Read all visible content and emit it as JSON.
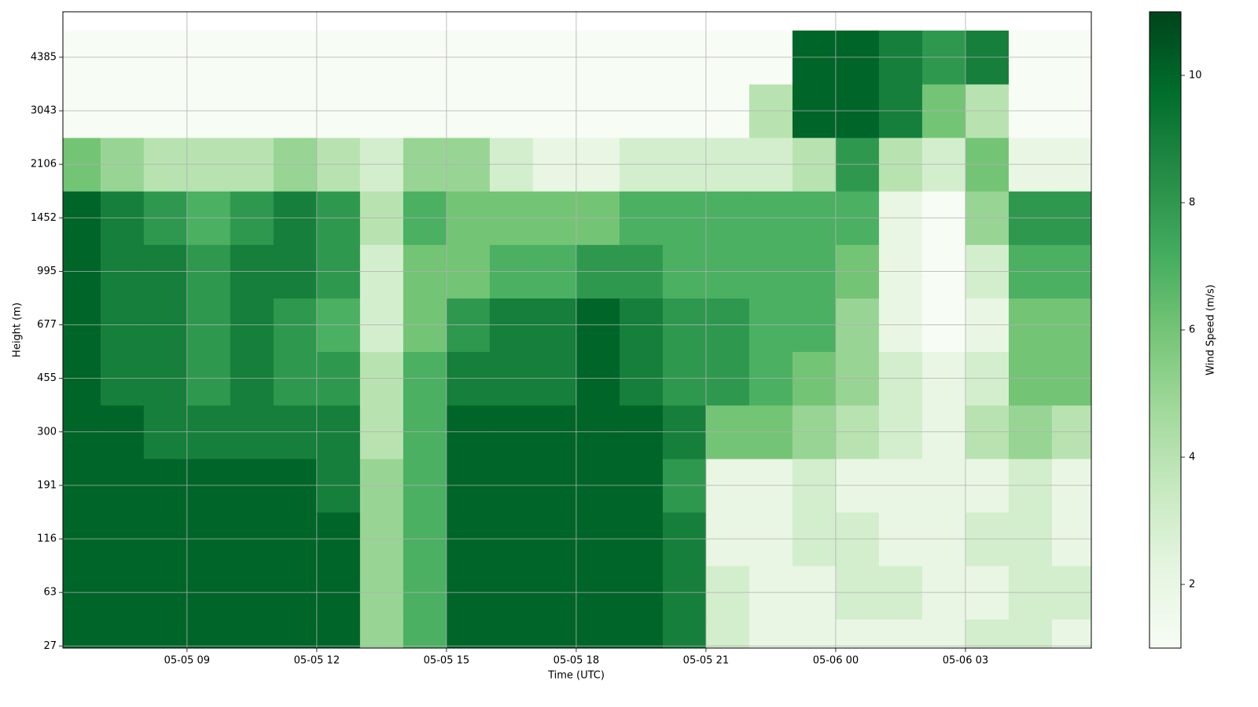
{
  "chart_data": {
    "type": "heatmap",
    "x_label": "Time (UTC)",
    "y_label": "Height (m)",
    "colorbar_label": "Wind Speed (m/s)",
    "x": [
      6.5,
      7.5,
      8.5,
      9.5,
      10.5,
      11.5,
      12.5,
      13.5,
      14.5,
      15.5,
      16.5,
      17.5,
      18.5,
      19.5,
      20.5,
      21.5,
      22.5,
      23.5,
      24.5,
      25.5,
      26.5,
      27.5,
      28.5,
      29.5
    ],
    "y": [
      0,
      1,
      2,
      3,
      4,
      5,
      6,
      7,
      8,
      9,
      10,
      11
    ],
    "values": [
      [
        10,
        10,
        10,
        10,
        10,
        10,
        10,
        5,
        7,
        10,
        10,
        10,
        10,
        10,
        9,
        3,
        2,
        2,
        2,
        2,
        2,
        3,
        3,
        2
      ],
      [
        10,
        10,
        10,
        10,
        10,
        10,
        10,
        5,
        7,
        10,
        10,
        10,
        10,
        10,
        9,
        3,
        2,
        2,
        3,
        3,
        2,
        2,
        3,
        3
      ],
      [
        10,
        10,
        10,
        10,
        10,
        10,
        10,
        5,
        7,
        10,
        10,
        10,
        10,
        10,
        9,
        2,
        2,
        3,
        3,
        2,
        2,
        3,
        3,
        2
      ],
      [
        10,
        10,
        10,
        10,
        10,
        10,
        9,
        5,
        7,
        10,
        10,
        10,
        10,
        10,
        8,
        2,
        2,
        3,
        2,
        2,
        2,
        2,
        3,
        2
      ],
      [
        10,
        10,
        9,
        9,
        9,
        9,
        9,
        4,
        7,
        10,
        10,
        10,
        10,
        10,
        9,
        6,
        6,
        5,
        4,
        3,
        2,
        4,
        5,
        4
      ],
      [
        10,
        9,
        9,
        8,
        9,
        8,
        8,
        4,
        7,
        9,
        9,
        9,
        10,
        9,
        8,
        8,
        7,
        6,
        5,
        3,
        2,
        3,
        6,
        6
      ],
      [
        10,
        9,
        9,
        8,
        9,
        8,
        7,
        3,
        6,
        8,
        9,
        9,
        10,
        9,
        8,
        8,
        7,
        7,
        5,
        2,
        1,
        2,
        6,
        6
      ],
      [
        10,
        9,
        9,
        8,
        9,
        9,
        8,
        3,
        6,
        6,
        7,
        7,
        8,
        8,
        7,
        7,
        7,
        7,
        6,
        2,
        1,
        3,
        7,
        7
      ],
      [
        10,
        9,
        8,
        7,
        8,
        9,
        8,
        4,
        7,
        6,
        6,
        6,
        6,
        7,
        7,
        7,
        7,
        7,
        7,
        2,
        1,
        5,
        8,
        8
      ],
      [
        6,
        5,
        4,
        4,
        4,
        5,
        4,
        3,
        5,
        5,
        3,
        2,
        2,
        3,
        3,
        3,
        3,
        4,
        8,
        4,
        3,
        6,
        2,
        2
      ],
      [
        1,
        1,
        1,
        1,
        1,
        1,
        1,
        1,
        1,
        1,
        1,
        1,
        1,
        1,
        1,
        1,
        4,
        10,
        10,
        9,
        6,
        4,
        1,
        1
      ],
      [
        1,
        1,
        1,
        1,
        1,
        1,
        1,
        1,
        1,
        1,
        1,
        1,
        1,
        1,
        1,
        1,
        1,
        10,
        10,
        9,
        8,
        9,
        1,
        1
      ]
    ],
    "xlim": [
      6.13,
      29.91
    ],
    "ylim": [
      -0.04,
      11.85
    ],
    "xticks": [
      {
        "value": 9,
        "label": "05-05 09"
      },
      {
        "value": 12,
        "label": "05-05 12"
      },
      {
        "value": 15,
        "label": "05-05 15"
      },
      {
        "value": 18,
        "label": "05-05 18"
      },
      {
        "value": 21,
        "label": "05-05 21"
      },
      {
        "value": 24,
        "label": "05-06 00"
      },
      {
        "value": 27,
        "label": "05-06 03"
      }
    ],
    "yticks": [
      {
        "value": 0,
        "label": "27"
      },
      {
        "value": 1,
        "label": "63"
      },
      {
        "value": 2,
        "label": "116"
      },
      {
        "value": 3,
        "label": "191"
      },
      {
        "value": 4,
        "label": "300"
      },
      {
        "value": 5,
        "label": "455"
      },
      {
        "value": 6,
        "label": "677"
      },
      {
        "value": 7,
        "label": "995"
      },
      {
        "value": 8,
        "label": "1452"
      },
      {
        "value": 9,
        "label": "2106"
      },
      {
        "value": 10,
        "label": "3043"
      },
      {
        "value": 11,
        "label": "4385"
      }
    ],
    "clim": [
      1,
      11
    ],
    "cticks": [
      2,
      4,
      6,
      8,
      10
    ],
    "colormap": [
      "#f7fcf5",
      "#e5f5e0",
      "#c7e9c0",
      "#a1d99b",
      "#74c476",
      "#41ab5d",
      "#238b45",
      "#006d2c",
      "#00441b"
    ],
    "grid": true
  }
}
